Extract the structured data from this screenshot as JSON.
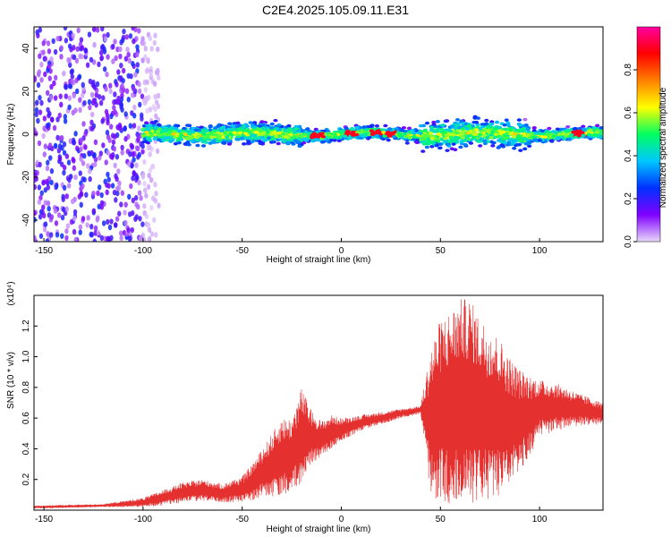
{
  "title": "C2E4.2025.105.09.11.E31",
  "chart_data": [
    {
      "type": "heatmap",
      "xlabel": "Height of straight line (km)",
      "ylabel": "Frequency (Hz)",
      "xlim": [
        -155,
        132
      ],
      "ylim": [
        -50,
        50
      ],
      "xticks": [
        -150,
        -100,
        -50,
        0,
        50,
        100
      ],
      "yticks": [
        -40,
        -20,
        0,
        20,
        40
      ],
      "colorbar": {
        "label": "Normalized spectral amplitude",
        "range": [
          0,
          1
        ],
        "ticks": [
          "0.0",
          "0.2",
          "0.4",
          "0.6",
          "0.8"
        ],
        "tick_values": [
          0,
          0.2,
          0.4,
          0.6,
          0.8
        ],
        "colors": [
          "#e8d8f8",
          "#8000ff",
          "#0030ff",
          "#00c8ff",
          "#00ff60",
          "#ffff00",
          "#ff8000",
          "#ff0000",
          "#ff00a0"
        ]
      },
      "regions": [
        {
          "x_range": [
            -155,
            -100
          ],
          "y_range": [
            -50,
            50
          ],
          "amplitude": 0.1,
          "pattern": "scattered noise"
        },
        {
          "x_range": [
            -100,
            132
          ],
          "y_range": [
            -5,
            5
          ],
          "amplitude": 0.5,
          "pattern": "band around 0 Hz"
        }
      ],
      "peaks_x": [
        -12,
        5,
        18,
        25,
        120
      ]
    },
    {
      "type": "line",
      "xlabel": "Height of straight line (km)",
      "ylabel": "SNR (10 * v/v)",
      "y_scale_note": "(x10⁴)",
      "xlim": [
        -155,
        132
      ],
      "ylim": [
        0,
        1.4
      ],
      "xticks": [
        -150,
        -100,
        -50,
        0,
        50,
        100
      ],
      "yticks": [
        "0.2",
        "0.4",
        "0.6",
        "0.8",
        "1.0",
        "1.2"
      ],
      "ytick_values": [
        0.2,
        0.4,
        0.6,
        0.8,
        1.0,
        1.2
      ],
      "color": "#e53030",
      "envelope": {
        "x": [
          -155,
          -120,
          -100,
          -90,
          -80,
          -70,
          -60,
          -50,
          -45,
          -40,
          -35,
          -30,
          -25,
          -20,
          -15,
          -10,
          -5,
          0,
          10,
          20,
          30,
          40,
          45,
          50,
          55,
          60,
          65,
          70,
          75,
          80,
          85,
          90,
          95,
          100,
          110,
          120,
          132
        ],
        "upper": [
          0.03,
          0.04,
          0.08,
          0.13,
          0.18,
          0.2,
          0.17,
          0.22,
          0.3,
          0.4,
          0.5,
          0.6,
          0.6,
          0.8,
          0.65,
          0.58,
          0.62,
          0.6,
          0.62,
          0.64,
          0.66,
          0.68,
          1.05,
          1.25,
          1.3,
          1.38,
          1.38,
          1.25,
          1.2,
          1.12,
          1.0,
          0.92,
          0.88,
          0.85,
          0.82,
          0.76,
          0.7
        ],
        "lower": [
          0.01,
          0.02,
          0.02,
          0.03,
          0.05,
          0.06,
          0.05,
          0.05,
          0.06,
          0.08,
          0.08,
          0.1,
          0.12,
          0.15,
          0.3,
          0.35,
          0.4,
          0.45,
          0.52,
          0.56,
          0.6,
          0.63,
          0.1,
          0.05,
          0.03,
          0.02,
          0.04,
          0.06,
          0.05,
          0.1,
          0.15,
          0.25,
          0.35,
          0.48,
          0.52,
          0.55,
          0.56
        ]
      }
    }
  ]
}
